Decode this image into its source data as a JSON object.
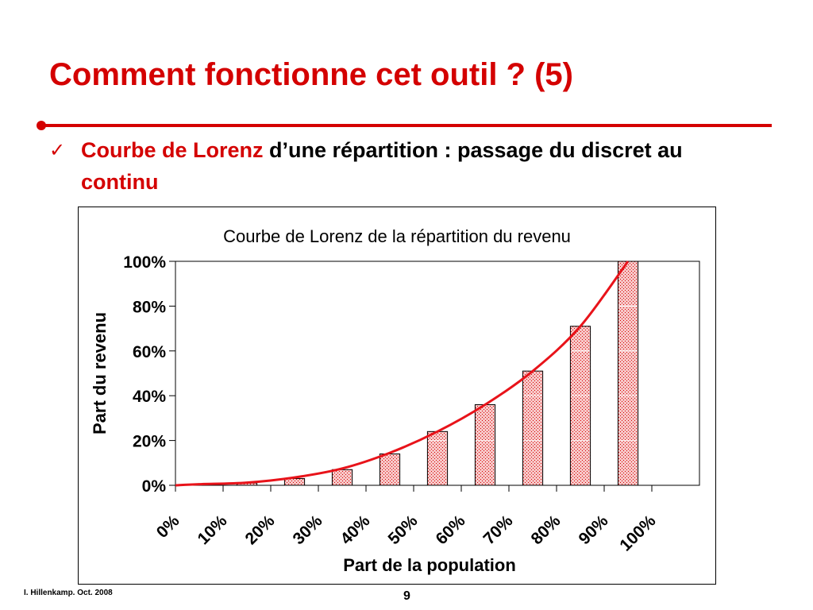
{
  "slide": {
    "title": "Comment fonctionne cet outil ? (5)",
    "bullet": {
      "check": "✓",
      "part1_red": "Courbe de Lorenz",
      "part2": " d’une répartition : passage du discret au ",
      "part3_red": "continu"
    },
    "footer_author": "I. Hillenkamp. Oct. 2008",
    "page_number": "9"
  },
  "colors": {
    "accent": "#d40000",
    "bar_fill": "#f2b3b3",
    "bar_stroke": "#000000",
    "curve": "#e8131a"
  },
  "chart_data": {
    "type": "bar",
    "title": "Courbe de Lorenz de la répartition du revenu",
    "xlabel": "Part de la population",
    "ylabel": "Part du revenu",
    "x_tick_labels": [
      "0%",
      "10%",
      "20%",
      "30%",
      "40%",
      "50%",
      "60%",
      "70%",
      "80%",
      "90%",
      "100%"
    ],
    "y_tick_labels": [
      "0%",
      "20%",
      "40%",
      "60%",
      "80%",
      "100%"
    ],
    "ylim": [
      0,
      100
    ],
    "xlim": [
      0,
      110
    ],
    "bars": {
      "x": [
        5,
        15,
        25,
        35,
        45,
        55,
        65,
        75,
        85,
        95
      ],
      "values": [
        0.5,
        1,
        3,
        7,
        14,
        24,
        36,
        51,
        71,
        100
      ]
    },
    "curve": {
      "x": [
        0,
        5,
        15,
        25,
        35,
        45,
        55,
        65,
        75,
        85,
        95
      ],
      "values": [
        0,
        0.5,
        1.2,
        3.5,
        7.5,
        14.5,
        24,
        36,
        51,
        71,
        100
      ]
    },
    "grid": false,
    "legend": "none"
  }
}
